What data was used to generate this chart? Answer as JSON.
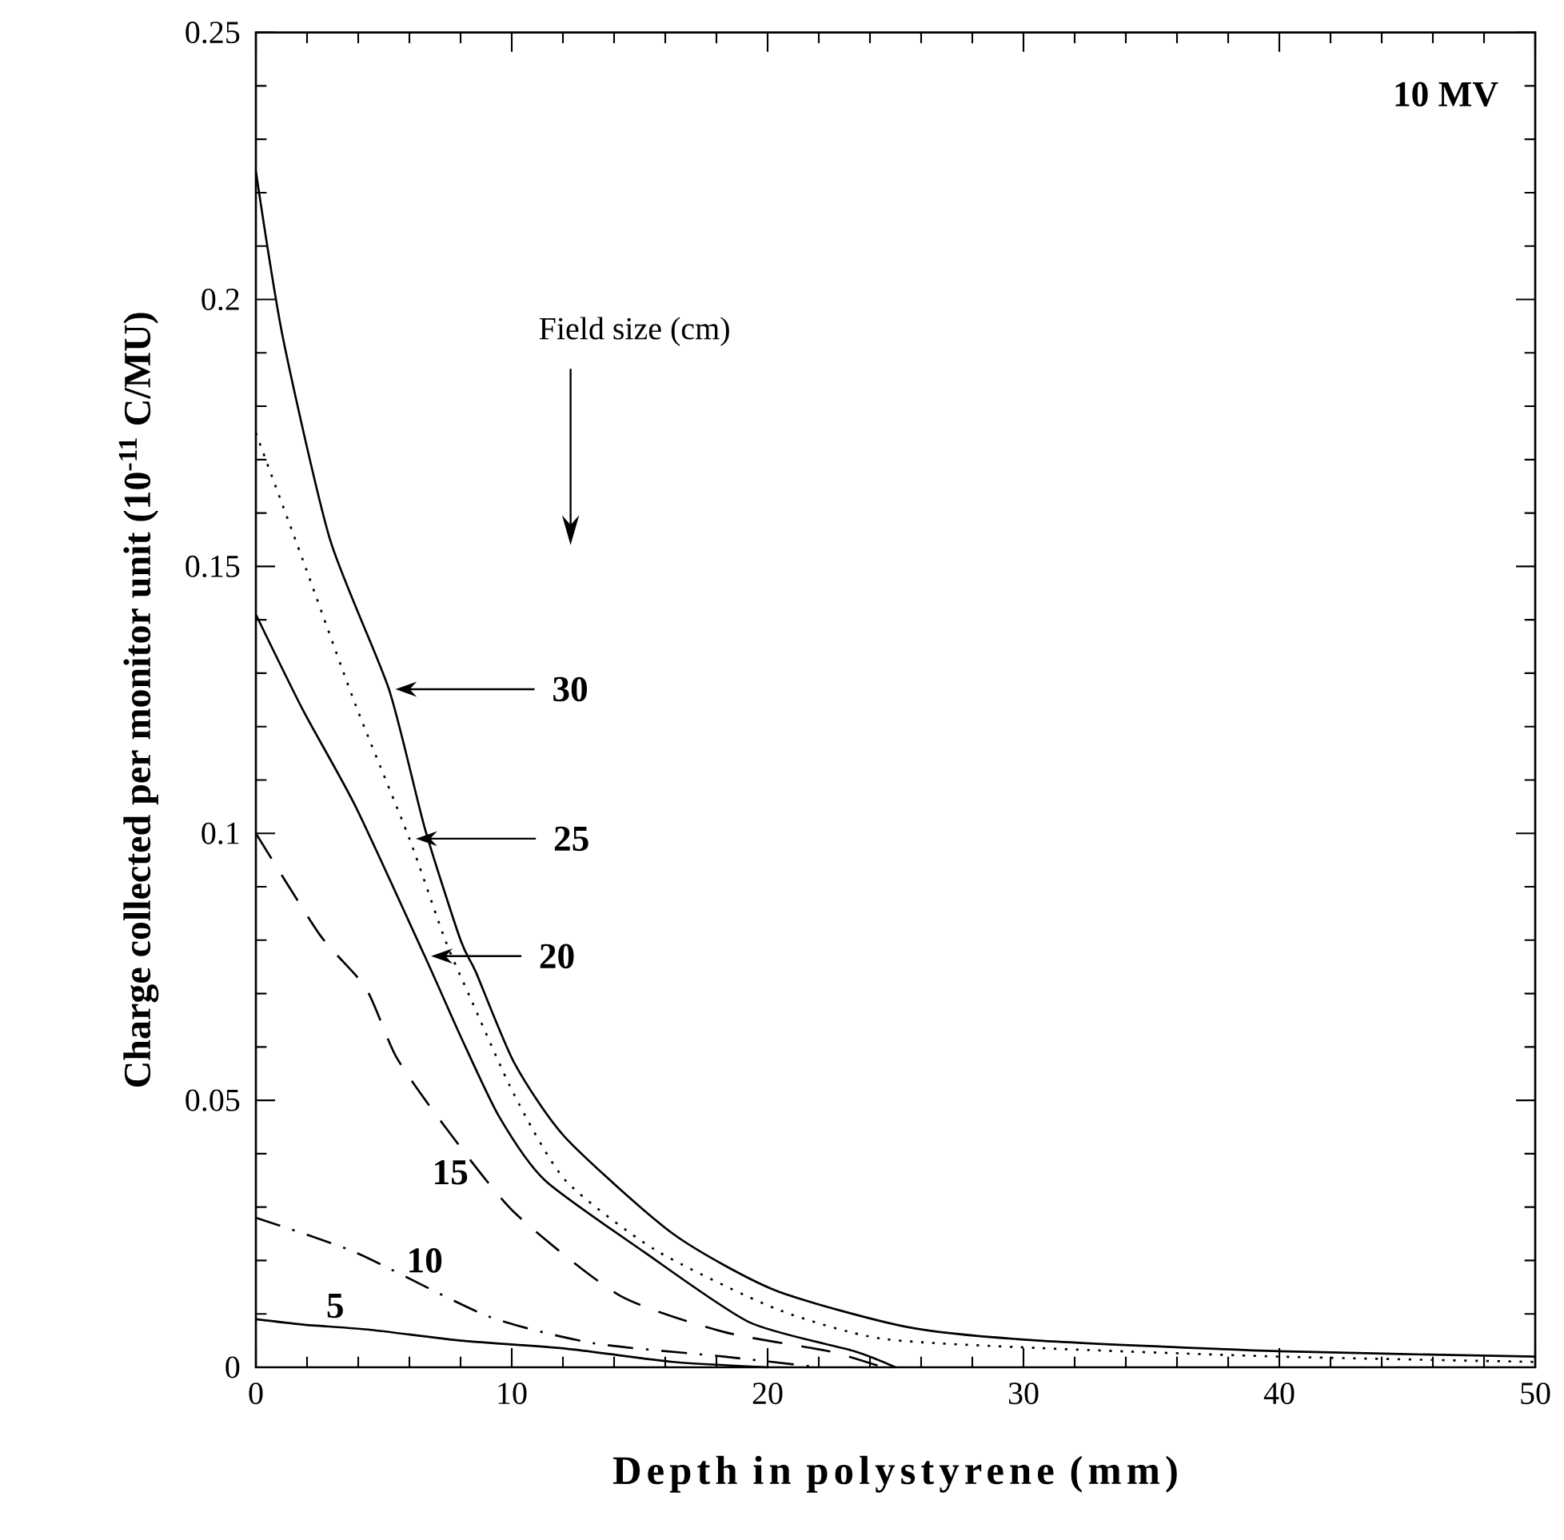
{
  "chart_data": {
    "type": "line",
    "xlabel": "Depth in polystyrene (mm)",
    "ylabel": "Charge collected per monitor unit (10$^{-11}$ C/MU)",
    "xlim": [
      0,
      50
    ],
    "ylim": [
      0,
      0.25
    ],
    "xticks": [
      0,
      10,
      20,
      30,
      40,
      50
    ],
    "yticks": [
      0,
      0.05,
      0.1,
      0.15,
      0.2,
      0.25
    ],
    "marker": "none",
    "series": [
      {
        "color": "#000000",
        "line_style": "solid",
        "x": [
          0,
          1.05,
          2.9,
          5.2,
          6.6,
          8.0,
          8.6,
          10.1,
          12.1,
          16.3,
          20.3,
          25.5,
          30.6,
          40,
          50
        ],
        "values": [
          0.224,
          0.193,
          0.155,
          0.127,
          0.101,
          0.08,
          0.074,
          0.057,
          0.043,
          0.025,
          0.0144,
          0.0075,
          0.005,
          0.003,
          0.002
        ]
      },
      {
        "color": "#000000",
        "line_style": "dotted",
        "x": [
          0,
          1.85,
          3.9,
          6.0,
          7.4,
          8.4,
          10.1,
          12.1,
          15.6,
          20.3,
          24.4,
          30.6,
          40,
          50
        ],
        "values": [
          0.175,
          0.151,
          0.124,
          0.099,
          0.08,
          0.069,
          0.051,
          0.035,
          0.022,
          0.011,
          0.0054,
          0.0036,
          0.002,
          0.001
        ]
      },
      {
        "color": "#000000",
        "line_style": "solid",
        "x": [
          0,
          1.85,
          3.9,
          6.6,
          8.0,
          9.5,
          11.3,
          15.2,
          19.3,
          23.4,
          25
        ],
        "values": [
          0.141,
          0.123,
          0.105,
          0.077,
          0.062,
          0.047,
          0.035,
          0.0215,
          0.0084,
          0.003,
          0
        ]
      },
      {
        "color": "#000000",
        "line_style": "dashed",
        "x": [
          0,
          2.5,
          4.3,
          5.5,
          7.4,
          10.1,
          14.2,
          18.3,
          22.4,
          24.5
        ],
        "values": [
          0.1,
          0.081,
          0.071,
          0.058,
          0.045,
          0.029,
          0.0135,
          0.0066,
          0.003,
          0
        ]
      },
      {
        "color": "#000000",
        "line_style": "dashdot",
        "x": [
          0,
          3.9,
          9.05,
          13.2,
          18.3,
          22
        ],
        "values": [
          0.028,
          0.0215,
          0.0096,
          0.0045,
          0.002,
          0
        ]
      },
      {
        "color": "#000000",
        "line_style": "solid",
        "x": [
          0,
          1.85,
          4.5,
          8.0,
          12.1,
          16.3,
          20
        ],
        "values": [
          0.009,
          0.008,
          0.007,
          0.005,
          0.0035,
          0.001,
          0
        ]
      }
    ],
    "annotations": [
      "30",
      "25",
      "20",
      "15",
      "10",
      "5",
      "Field size (cm)",
      "**10 MV**"
    ]
  }
}
